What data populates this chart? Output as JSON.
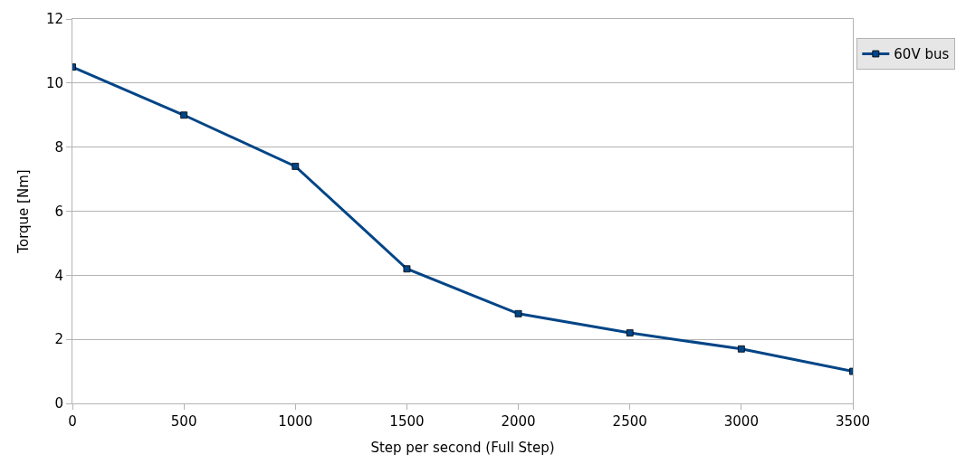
{
  "chart_data": {
    "type": "line",
    "xlabel": "Step per second (Full Step)",
    "ylabel": "Torque [Nm]",
    "x": [
      0,
      500,
      1000,
      1500,
      2000,
      2500,
      3000,
      3500
    ],
    "series": [
      {
        "name": "60V bus",
        "color": "#004586",
        "values": [
          10.5,
          9.0,
          7.4,
          4.2,
          2.8,
          2.2,
          1.7,
          1.0
        ]
      }
    ],
    "xlim": [
      0,
      3500
    ],
    "xticks": [
      0,
      500,
      1000,
      1500,
      2000,
      2500,
      3000,
      3500
    ],
    "ylim": [
      0,
      12
    ],
    "yticks": [
      0,
      2,
      4,
      6,
      8,
      10,
      12
    ],
    "grid": "y",
    "legend": "top right",
    "marker": "square",
    "line_style": "solid"
  }
}
